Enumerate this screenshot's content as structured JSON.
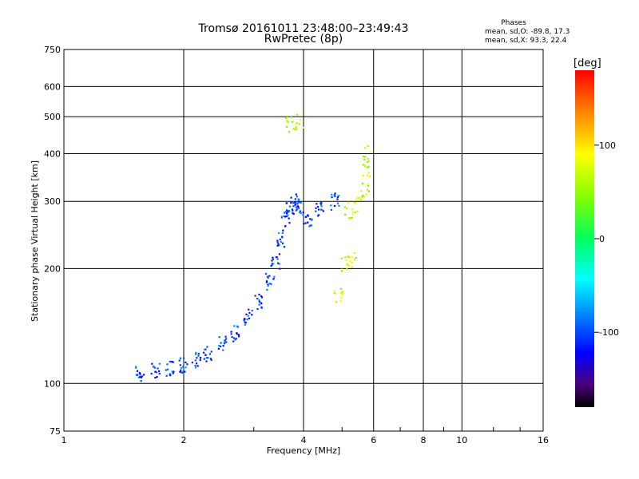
{
  "chart_data": {
    "type": "scatter",
    "title": "Tromsø 20161011 23:48:00–23:49:43",
    "subtitle": "RwPretec (8p)",
    "xlabel": "Frequency [MHz]",
    "ylabel": "Stationary phase Virtual Height [km]",
    "x_scale": "log",
    "y_scale": "log",
    "xlim": [
      1,
      16
    ],
    "ylim": [
      75,
      750
    ],
    "x_ticks": [
      1,
      2,
      4,
      6,
      8,
      10,
      16
    ],
    "y_ticks": [
      75,
      100,
      200,
      300,
      400,
      500,
      600,
      750
    ],
    "grid": true,
    "stats_box": {
      "title": "Phases",
      "line1": "mean, sd,O: -89.8, 17.3",
      "line2": "mean, sd,X:  93.3, 22.4"
    },
    "colorbar": {
      "label": "[deg]",
      "min": -180,
      "max": 180,
      "ticks": [
        100,
        0,
        -100
      ]
    },
    "series": [
      {
        "mode": "O",
        "phase_mean_deg": -89.8,
        "trace_points": [
          [
            1.55,
            106
          ],
          [
            1.7,
            108
          ],
          [
            1.85,
            110
          ],
          [
            2.0,
            112
          ],
          [
            2.15,
            115
          ],
          [
            2.3,
            120
          ],
          [
            2.5,
            127
          ],
          [
            2.7,
            135
          ],
          [
            2.9,
            150
          ],
          [
            3.1,
            165
          ],
          [
            3.3,
            185
          ],
          [
            3.4,
            210
          ],
          [
            3.5,
            240
          ],
          [
            3.6,
            270
          ],
          [
            3.7,
            290
          ],
          [
            3.8,
            300
          ],
          [
            3.9,
            290
          ],
          [
            4.1,
            270
          ],
          [
            4.4,
            285
          ],
          [
            4.8,
            300
          ]
        ]
      },
      {
        "mode": "X",
        "phase_mean_deg": 93.3,
        "trace_points": [
          [
            5.2,
            285
          ],
          [
            5.5,
            295
          ],
          [
            5.7,
            320
          ],
          [
            5.75,
            360
          ],
          [
            5.8,
            400
          ],
          [
            5.1,
            205
          ],
          [
            5.3,
            210
          ],
          [
            4.9,
            170
          ],
          [
            3.7,
            480
          ],
          [
            3.9,
            485
          ]
        ]
      }
    ]
  }
}
